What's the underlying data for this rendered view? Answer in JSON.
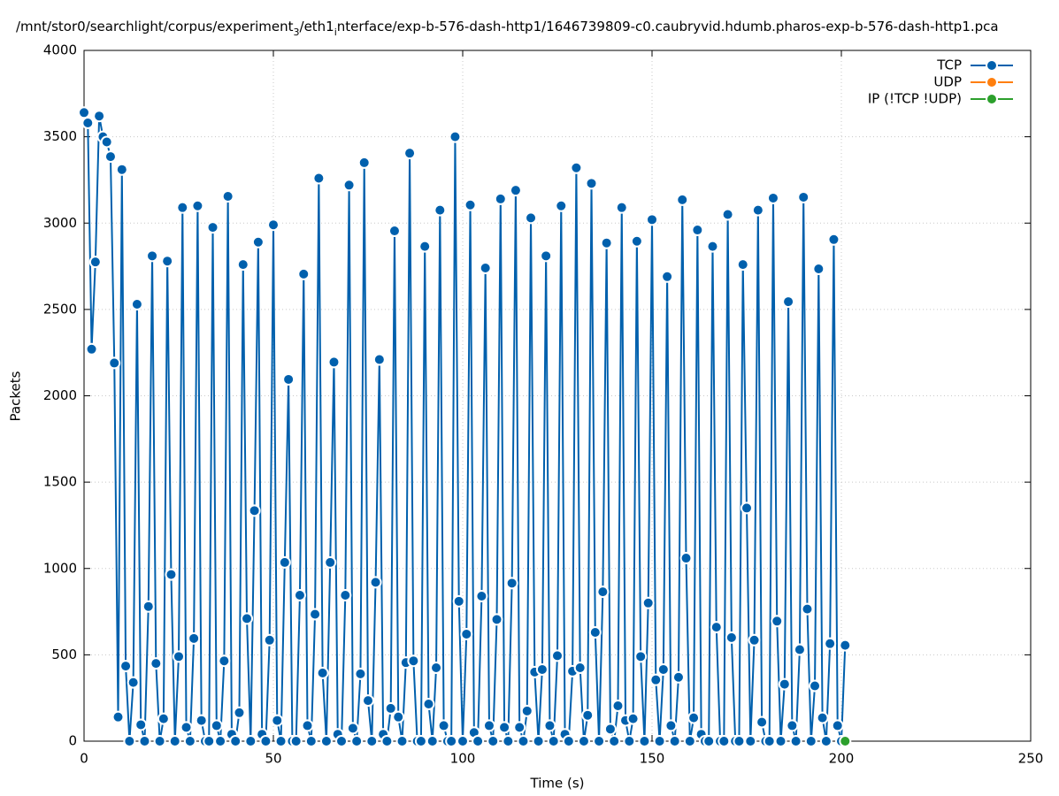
{
  "chart_data": {
    "type": "line",
    "title": [
      {
        "text": "/mnt/stor0/searchlight/corpus/experiment"
      },
      {
        "text": "3",
        "subscript": true
      },
      {
        "text": "/eth1"
      },
      {
        "text": "i",
        "subscript": true
      },
      {
        "text": "nterface/exp-b-576-dash-http1/1646739809-c0.caubryvid.hdumb.pharos-exp-b-576-dash-http1.pca"
      }
    ],
    "x_label": "Time (s)",
    "y_label": "Packets",
    "xlim": [
      0,
      250
    ],
    "xticks": [
      0,
      50,
      100,
      150,
      200,
      250
    ],
    "ylim": [
      0,
      4000
    ],
    "yticks": [
      0,
      500,
      1000,
      1500,
      2000,
      2500,
      3000,
      3500,
      4000
    ],
    "grid": true,
    "legend": "top-right",
    "series": [
      {
        "name": "TCP",
        "color": "#0060ad",
        "x": [
          0,
          1,
          2,
          3,
          4,
          5,
          6,
          7,
          8,
          9,
          10,
          11,
          12,
          13,
          14,
          15,
          16,
          17,
          18,
          19,
          20,
          21,
          22,
          23,
          24,
          25,
          26,
          27,
          28,
          29,
          30,
          31,
          32,
          33,
          34,
          35,
          36,
          37,
          38,
          39,
          40,
          41,
          42,
          43,
          44,
          45,
          46,
          47,
          48,
          49,
          50,
          51,
          52,
          53,
          54,
          55,
          56,
          57,
          58,
          59,
          60,
          61,
          62,
          63,
          64,
          65,
          66,
          67,
          68,
          69,
          70,
          71,
          72,
          73,
          74,
          75,
          76,
          77,
          78,
          79,
          80,
          81,
          82,
          83,
          84,
          85,
          86,
          87,
          88,
          89,
          90,
          91,
          92,
          93,
          94,
          95,
          96,
          97,
          98,
          99,
          100,
          101,
          102,
          103,
          104,
          105,
          106,
          107,
          108,
          109,
          110,
          111,
          112,
          113,
          114,
          115,
          116,
          117,
          118,
          119,
          120,
          121,
          122,
          123,
          124,
          125,
          126,
          127,
          128,
          129,
          130,
          131,
          132,
          133,
          134,
          135,
          136,
          137,
          138,
          139,
          140,
          141,
          142,
          143,
          144,
          145,
          146,
          147,
          148,
          149,
          150,
          151,
          152,
          153,
          154,
          155,
          156,
          157,
          158,
          159,
          160,
          161,
          162,
          163,
          164,
          165,
          166,
          167,
          168,
          169,
          170,
          171,
          172,
          173,
          174,
          175,
          176,
          177,
          178,
          179,
          180,
          181,
          182,
          183,
          184,
          185,
          186,
          187,
          188,
          189,
          190,
          191,
          192,
          193,
          194,
          195,
          196,
          197,
          198,
          199,
          200,
          201
        ],
        "values": [
          3640,
          3580,
          2270,
          2775,
          3620,
          3500,
          3470,
          3385,
          2190,
          140,
          3310,
          435,
          0,
          340,
          2530,
          95,
          0,
          780,
          2810,
          450,
          0,
          130,
          2780,
          965,
          0,
          490,
          3090,
          80,
          0,
          595,
          3100,
          120,
          0,
          0,
          2975,
          90,
          0,
          465,
          3155,
          40,
          0,
          165,
          2760,
          710,
          0,
          1335,
          2890,
          40,
          0,
          585,
          2990,
          120,
          0,
          1035,
          2095,
          0,
          0,
          845,
          2705,
          90,
          0,
          735,
          3260,
          395,
          0,
          1035,
          2195,
          40,
          0,
          845,
          3220,
          75,
          0,
          390,
          3350,
          235,
          0,
          920,
          2210,
          40,
          0,
          190,
          2955,
          140,
          0,
          455,
          3405,
          465,
          0,
          0,
          2865,
          215,
          0,
          425,
          3075,
          90,
          0,
          0,
          3500,
          810,
          0,
          620,
          3105,
          50,
          0,
          840,
          2740,
          90,
          0,
          705,
          3140,
          80,
          0,
          915,
          3190,
          80,
          0,
          175,
          3030,
          400,
          0,
          415,
          2810,
          90,
          0,
          495,
          3100,
          40,
          0,
          405,
          3320,
          425,
          0,
          150,
          3230,
          630,
          0,
          865,
          2885,
          70,
          0,
          205,
          3090,
          120,
          0,
          130,
          2895,
          490,
          0,
          800,
          3020,
          355,
          0,
          415,
          2690,
          90,
          0,
          370,
          3135,
          1060,
          0,
          135,
          2960,
          40,
          0,
          0,
          2865,
          660,
          0,
          0,
          3050,
          600,
          0,
          0,
          2760,
          1350,
          0,
          585,
          3075,
          110,
          0,
          0,
          3145,
          695,
          0,
          330,
          2545,
          90,
          0,
          530,
          3150,
          765,
          0,
          320,
          2735,
          135,
          0,
          565,
          2905,
          90,
          0,
          555
        ]
      },
      {
        "name": "UDP",
        "color": "#ff7f0e",
        "x": [],
        "values": []
      },
      {
        "name": "IP (!TCP  !UDP)",
        "color": "#2ca02c",
        "x": [
          201
        ],
        "values": [
          0
        ]
      }
    ]
  }
}
